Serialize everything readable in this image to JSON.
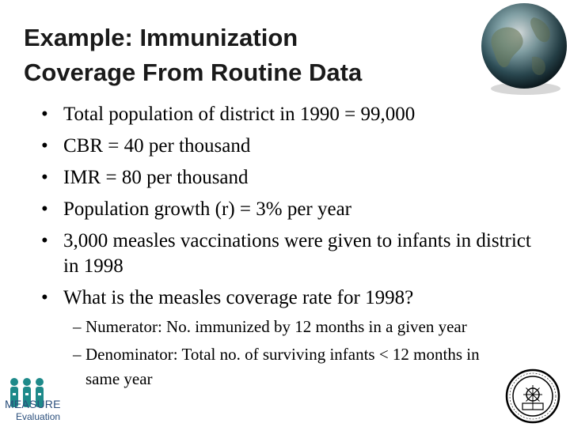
{
  "slide": {
    "title_line1": "Example: Immunization",
    "title_line2": "Coverage From Routine Data",
    "bullets": [
      {
        "text": "Total population of district in 1990 = 99,000"
      },
      {
        "text": "CBR = 40 per thousand"
      },
      {
        "text": "IMR = 80 per thousand"
      },
      {
        "text": "Population growth (r) = 3% per year"
      },
      {
        "text": "3,000 measles vaccinations were given to infants in district in 1998"
      },
      {
        "text": "What is the measles coverage rate for 1998?"
      }
    ],
    "sub_bullets": [
      {
        "text": "Numerator: No. immunized by 12 months in a given year"
      },
      {
        "text": "Denominator: Total no. of surviving infants < 12 months in same year"
      }
    ],
    "bullet_glyph": "•",
    "dash_glyph": "–"
  },
  "logos": {
    "measure_name": "MEASURE",
    "measure_sub": "Evaluation",
    "seal_text": "UNIVERSITY"
  },
  "icons": {
    "globe": "globe-icon",
    "measure": "people-icon",
    "seal": "seal-icon"
  },
  "colors": {
    "logo_blue": "#2b4f7c",
    "logo_teal": "#1e8a8a"
  }
}
